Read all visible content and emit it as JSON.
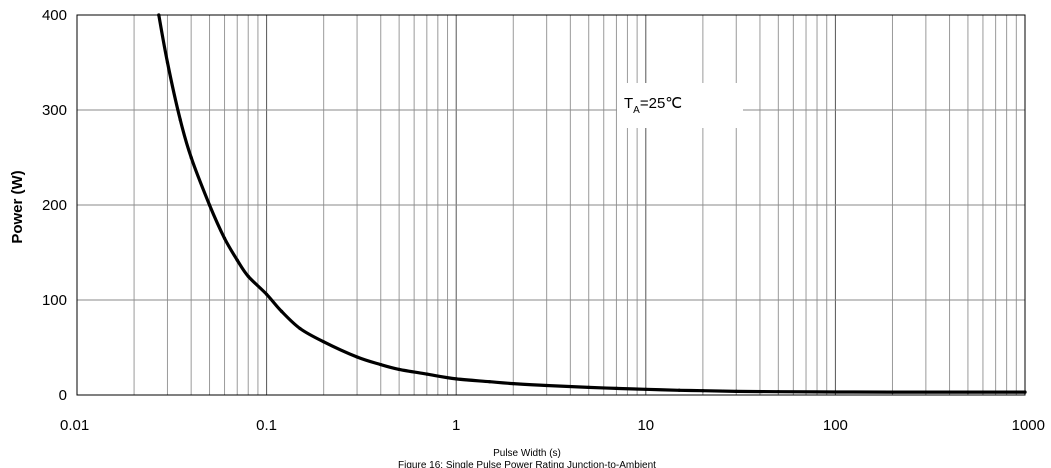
{
  "chart_data": {
    "type": "line",
    "title": "",
    "caption": "Figure 16: Single Pulse Power Rating Junction-to-Ambient",
    "xlabel": "Pulse Width (s)",
    "ylabel": "Power (W)",
    "xscale": "log",
    "xlim": [
      0.01,
      1000
    ],
    "ylim": [
      0,
      400
    ],
    "grid": true,
    "x_ticks": [
      "0.01",
      "0.1",
      "1",
      "10",
      "100",
      "1000"
    ],
    "y_ticks": [
      "0",
      "100",
      "200",
      "300",
      "400"
    ],
    "annotation": {
      "main": "T",
      "sub": "A",
      "rest": "=25℃"
    },
    "series": [
      {
        "color": "#000000",
        "x": [
          0.027,
          0.03,
          0.035,
          0.04,
          0.05,
          0.06,
          0.07,
          0.08,
          0.1,
          0.12,
          0.15,
          0.2,
          0.3,
          0.4,
          0.5,
          0.7,
          1,
          1.5,
          2,
          3,
          5,
          7,
          10,
          15,
          20,
          30,
          50,
          100,
          200,
          500,
          1000
        ],
        "y": [
          400,
          350,
          290,
          250,
          200,
          165,
          142,
          125,
          106,
          88,
          70,
          56,
          40,
          32,
          27,
          22,
          17,
          14,
          12,
          10,
          8,
          7,
          6,
          5,
          4.5,
          3.8,
          3.5,
          3.2,
          3,
          3,
          3
        ]
      }
    ]
  }
}
